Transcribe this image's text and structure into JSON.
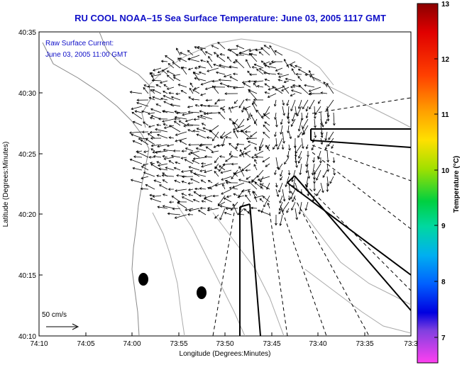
{
  "title": "RU COOL  NOAA–15  Sea Surface Temperature:  June 03, 2005 1117 GMT",
  "legend": {
    "line1": "Raw Surface Current:",
    "line2": "June 03, 2005 11:00 GMT"
  },
  "scale_label": "50 cm/s",
  "x_axis": {
    "label": "Longitude (Degrees:Minutes)",
    "ticks": [
      "74:10",
      "74:05",
      "74:00",
      "73:55",
      "73:50",
      "73:45",
      "73:40",
      "73:35",
      "73:3"
    ]
  },
  "y_axis": {
    "label": "Latitude (Degrees:Minutes)",
    "ticks": [
      "40:35",
      "40:30",
      "40:25",
      "40:20",
      "40:15",
      "40:10"
    ]
  },
  "colorbar": {
    "label": "Temperature (°C)",
    "ticks": [
      "13",
      "12",
      "11",
      "10",
      "9",
      "8",
      "7"
    ]
  },
  "colors": {
    "title": "#1010c8",
    "legend_text": "#1010c8"
  }
}
